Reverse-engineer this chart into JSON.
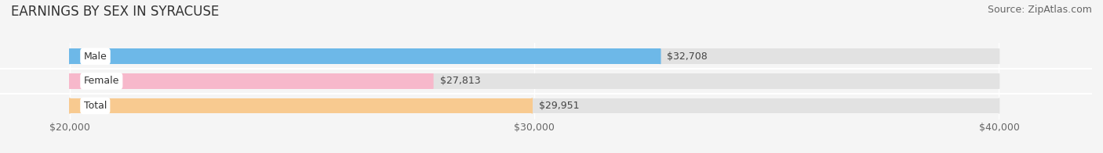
{
  "title": "EARNINGS BY SEX IN SYRACUSE",
  "source": "Source: ZipAtlas.com",
  "categories": [
    "Male",
    "Female",
    "Total"
  ],
  "values": [
    32708,
    27813,
    29951
  ],
  "bar_colors": [
    "#6db8e8",
    "#f7b8cb",
    "#f8ca90"
  ],
  "x_min": 20000,
  "x_max": 40000,
  "x_ticks": [
    20000,
    30000,
    40000
  ],
  "x_tick_labels": [
    "$20,000",
    "$30,000",
    "$40,000"
  ],
  "value_labels": [
    "$32,708",
    "$27,813",
    "$29,951"
  ],
  "bar_height": 0.62,
  "background_color": "#f5f5f5",
  "bar_bg_color": "#e2e2e2",
  "title_fontsize": 12,
  "source_fontsize": 9,
  "tick_fontsize": 9,
  "label_fontsize": 9,
  "value_fontsize": 9
}
